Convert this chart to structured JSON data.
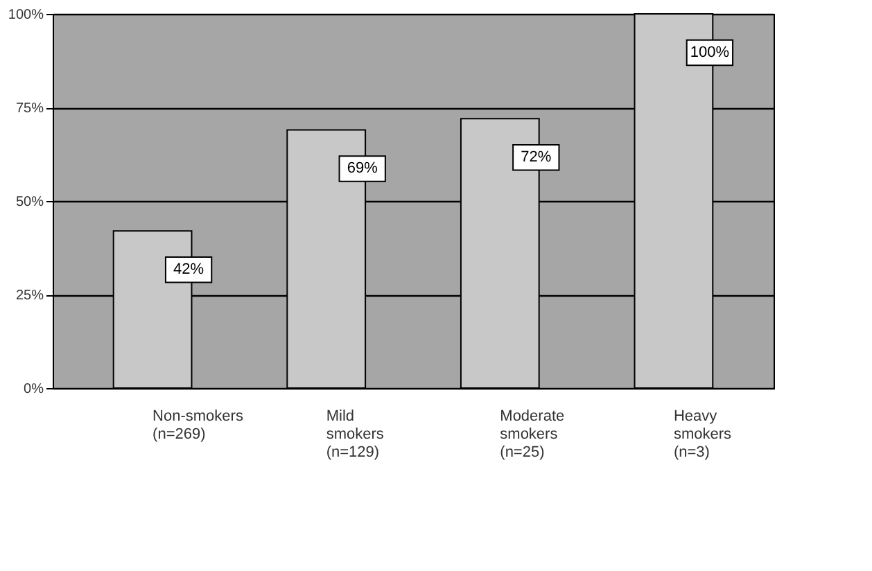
{
  "chart_data": {
    "type": "bar",
    "categories": [
      "Non-smokers (n=269)",
      "Mild smokers (n=129)",
      "Moderate smokers (n=25)",
      "Heavy smokers (n=3)"
    ],
    "values": [
      42,
      69,
      72,
      100
    ],
    "color": "#c8c8c8",
    "value_labels": [
      "42%",
      "69%",
      "72%",
      "100%"
    ],
    "ylim": [
      0,
      100
    ],
    "yticks": [
      {
        "value": 0,
        "label": "0%"
      },
      {
        "value": 25,
        "label": "25%"
      },
      {
        "value": 50,
        "label": "50%"
      },
      {
        "value": 75,
        "label": "75%"
      },
      {
        "value": 100,
        "label": "100%"
      }
    ],
    "grid": "y"
  }
}
